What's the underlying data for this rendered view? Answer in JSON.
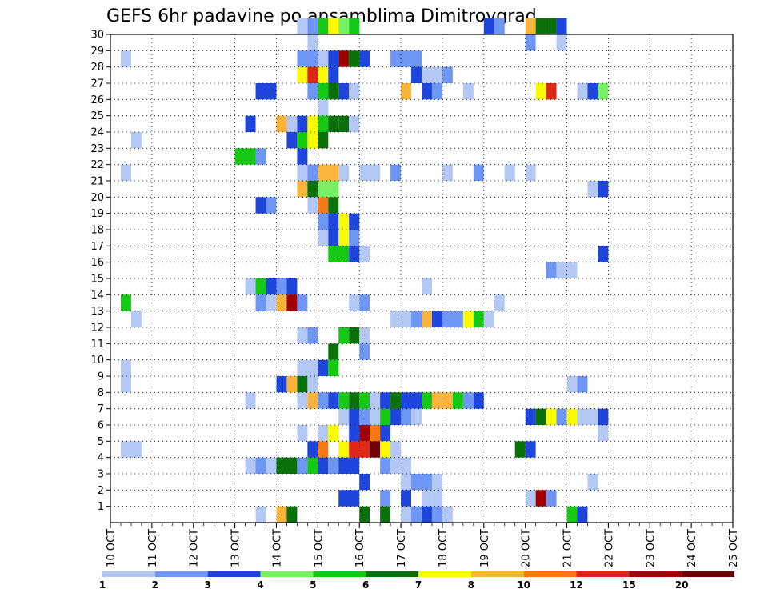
{
  "chart_data": {
    "type": "heatmap",
    "title": "GEFS 6hr padavine po ansamblima Dimitrovgrad",
    "xlabel": "",
    "ylabel": "",
    "x_ticks": [
      "10 OCT",
      "11 OCT",
      "12 OCT",
      "13 OCT",
      "14 OCT",
      "15 OCT",
      "16 OCT",
      "17 OCT",
      "18 OCT",
      "19 OCT",
      "20 OCT",
      "21 OCT",
      "22 OCT",
      "23 OCT",
      "24 OCT",
      "25 OCT"
    ],
    "y_ticks": [
      1,
      2,
      3,
      4,
      5,
      6,
      7,
      8,
      9,
      10,
      11,
      12,
      13,
      14,
      15,
      16,
      17,
      18,
      19,
      20,
      21,
      22,
      23,
      24,
      25,
      26,
      27,
      28,
      29,
      30
    ],
    "x_range_steps": [
      0,
      60
    ],
    "y_range": [
      0,
      30
    ],
    "grid": true,
    "colorbar": {
      "levels": [
        "1",
        "2",
        "3",
        "4",
        "5",
        "6",
        "7",
        "8",
        "10",
        "12",
        "15",
        "20"
      ],
      "colors": [
        "#b4c8f5",
        "#6e96f5",
        "#1e46dc",
        "#78f064",
        "#14c814",
        "#0a700a",
        "#fafa00",
        "#fab43c",
        "#fa7814",
        "#dc2814",
        "#a00000",
        "#6e0000"
      ]
    },
    "cells_note_members": "rows are ensemble member numbers; cells are [member, start_step, end_step, level_index]; step = 6 hours from 10 OCT 00z",
    "cells": [
      [
        30,
        18,
        19,
        0
      ],
      [
        30,
        19,
        20,
        1
      ],
      [
        30,
        20,
        21,
        4
      ],
      [
        30,
        21,
        22,
        6
      ],
      [
        30,
        22,
        23,
        3
      ],
      [
        30,
        23,
        24,
        4
      ],
      [
        30,
        36,
        37,
        2
      ],
      [
        30,
        37,
        38,
        1
      ],
      [
        30,
        40,
        41,
        7
      ],
      [
        30,
        41,
        42,
        5
      ],
      [
        30,
        42,
        43,
        5
      ],
      [
        30,
        43,
        44,
        2
      ],
      [
        29,
        19,
        20,
        0
      ],
      [
        29,
        40,
        41,
        1
      ],
      [
        29,
        43,
        44,
        0
      ],
      [
        28,
        1,
        2,
        0
      ],
      [
        28,
        18,
        20,
        1
      ],
      [
        28,
        20,
        21,
        0
      ],
      [
        28,
        21,
        22,
        2
      ],
      [
        28,
        22,
        23,
        10
      ],
      [
        28,
        23,
        24,
        5
      ],
      [
        28,
        24,
        25,
        2
      ],
      [
        28,
        27,
        29,
        1
      ],
      [
        28,
        29,
        30,
        1
      ],
      [
        27,
        18,
        19,
        6
      ],
      [
        27,
        19,
        20,
        9
      ],
      [
        27,
        20,
        21,
        6
      ],
      [
        27,
        21,
        22,
        2
      ],
      [
        27,
        29,
        30,
        2
      ],
      [
        27,
        30,
        32,
        0
      ],
      [
        27,
        32,
        33,
        1
      ],
      [
        26,
        14,
        16,
        2
      ],
      [
        26,
        19,
        20,
        1
      ],
      [
        26,
        20,
        21,
        4
      ],
      [
        26,
        21,
        22,
        5
      ],
      [
        26,
        22,
        23,
        2
      ],
      [
        26,
        23,
        24,
        0
      ],
      [
        26,
        28,
        29,
        7
      ],
      [
        26,
        30,
        31,
        2
      ],
      [
        26,
        31,
        32,
        1
      ],
      [
        26,
        34,
        35,
        0
      ],
      [
        26,
        41,
        42,
        6
      ],
      [
        26,
        42,
        43,
        9
      ],
      [
        26,
        45,
        46,
        0
      ],
      [
        26,
        46,
        47,
        2
      ],
      [
        26,
        47,
        48,
        3
      ],
      [
        25,
        20,
        21,
        0
      ],
      [
        24,
        13,
        14,
        2
      ],
      [
        24,
        16,
        17,
        7
      ],
      [
        24,
        17,
        18,
        0
      ],
      [
        24,
        18,
        19,
        2
      ],
      [
        24,
        19,
        20,
        6
      ],
      [
        24,
        20,
        21,
        4
      ],
      [
        24,
        21,
        22,
        5
      ],
      [
        24,
        22,
        23,
        5
      ],
      [
        24,
        23,
        24,
        0
      ],
      [
        23,
        2,
        3,
        0
      ],
      [
        23,
        17,
        18,
        2
      ],
      [
        23,
        18,
        19,
        4
      ],
      [
        23,
        19,
        20,
        6
      ],
      [
        23,
        20,
        21,
        5
      ],
      [
        22,
        12,
        14,
        4
      ],
      [
        22,
        14,
        15,
        1
      ],
      [
        22,
        18,
        19,
        2
      ],
      [
        21,
        1,
        2,
        0
      ],
      [
        21,
        18,
        19,
        0
      ],
      [
        21,
        19,
        20,
        1
      ],
      [
        21,
        20,
        22,
        7
      ],
      [
        21,
        22,
        23,
        0
      ],
      [
        21,
        24,
        26,
        0
      ],
      [
        21,
        27,
        28,
        1
      ],
      [
        21,
        32,
        33,
        0
      ],
      [
        21,
        35,
        36,
        1
      ],
      [
        21,
        38,
        39,
        0
      ],
      [
        21,
        40,
        41,
        0
      ],
      [
        20,
        18,
        19,
        7
      ],
      [
        20,
        19,
        20,
        5
      ],
      [
        20,
        20,
        22,
        3
      ],
      [
        20,
        46,
        47,
        0
      ],
      [
        20,
        47,
        48,
        2
      ],
      [
        19,
        14,
        15,
        2
      ],
      [
        19,
        15,
        16,
        1
      ],
      [
        19,
        19,
        20,
        0
      ],
      [
        19,
        20,
        21,
        8
      ],
      [
        19,
        21,
        22,
        5
      ],
      [
        18,
        20,
        21,
        1
      ],
      [
        18,
        21,
        22,
        2
      ],
      [
        18,
        22,
        23,
        6
      ],
      [
        18,
        23,
        24,
        2
      ],
      [
        17,
        20,
        21,
        0
      ],
      [
        17,
        21,
        22,
        2
      ],
      [
        17,
        22,
        23,
        6
      ],
      [
        17,
        23,
        24,
        1
      ],
      [
        16,
        21,
        23,
        4
      ],
      [
        16,
        23,
        24,
        2
      ],
      [
        16,
        24,
        25,
        0
      ],
      [
        16,
        47,
        48,
        2
      ],
      [
        15,
        42,
        43,
        1
      ],
      [
        15,
        43,
        45,
        0
      ],
      [
        14,
        13,
        14,
        0
      ],
      [
        14,
        14,
        15,
        4
      ],
      [
        14,
        15,
        16,
        2
      ],
      [
        14,
        16,
        17,
        1
      ],
      [
        14,
        17,
        18,
        2
      ],
      [
        14,
        30,
        31,
        0
      ],
      [
        13,
        1,
        2,
        4
      ],
      [
        13,
        14,
        15,
        1
      ],
      [
        13,
        15,
        16,
        0
      ],
      [
        13,
        16,
        17,
        7
      ],
      [
        13,
        17,
        18,
        10
      ],
      [
        13,
        18,
        19,
        1
      ],
      [
        13,
        23,
        24,
        0
      ],
      [
        13,
        24,
        25,
        1
      ],
      [
        13,
        37,
        38,
        0
      ],
      [
        12,
        2,
        3,
        0
      ],
      [
        12,
        27,
        29,
        0
      ],
      [
        12,
        29,
        30,
        1
      ],
      [
        12,
        30,
        31,
        7
      ],
      [
        12,
        31,
        32,
        2
      ],
      [
        12,
        32,
        34,
        1
      ],
      [
        12,
        34,
        35,
        6
      ],
      [
        12,
        35,
        36,
        4
      ],
      [
        12,
        36,
        37,
        0
      ],
      [
        11,
        18,
        19,
        0
      ],
      [
        11,
        19,
        20,
        1
      ],
      [
        11,
        22,
        23,
        4
      ],
      [
        11,
        23,
        24,
        5
      ],
      [
        11,
        24,
        25,
        0
      ],
      [
        10,
        21,
        22,
        5
      ],
      [
        10,
        24,
        25,
        1
      ],
      [
        9,
        1,
        2,
        0
      ],
      [
        9,
        18,
        20,
        0
      ],
      [
        9,
        20,
        21,
        2
      ],
      [
        9,
        21,
        22,
        4
      ],
      [
        8,
        1,
        2,
        0
      ],
      [
        8,
        16,
        17,
        2
      ],
      [
        8,
        17,
        18,
        7
      ],
      [
        8,
        18,
        19,
        5
      ],
      [
        8,
        19,
        20,
        0
      ],
      [
        8,
        44,
        45,
        0
      ],
      [
        8,
        45,
        46,
        1
      ],
      [
        7,
        13,
        14,
        0
      ],
      [
        7,
        18,
        19,
        0
      ],
      [
        7,
        19,
        20,
        7
      ],
      [
        7,
        20,
        21,
        1
      ],
      [
        7,
        21,
        22,
        2
      ],
      [
        7,
        22,
        23,
        4
      ],
      [
        7,
        23,
        24,
        5
      ],
      [
        7,
        24,
        25,
        4
      ],
      [
        7,
        25,
        26,
        0
      ],
      [
        7,
        26,
        27,
        2
      ],
      [
        7,
        27,
        28,
        5
      ],
      [
        7,
        28,
        30,
        2
      ],
      [
        7,
        30,
        31,
        4
      ],
      [
        7,
        31,
        33,
        7
      ],
      [
        7,
        33,
        34,
        4
      ],
      [
        7,
        34,
        35,
        1
      ],
      [
        7,
        35,
        36,
        2
      ],
      [
        6,
        22,
        23,
        0
      ],
      [
        6,
        23,
        24,
        2
      ],
      [
        6,
        24,
        25,
        1
      ],
      [
        6,
        25,
        26,
        0
      ],
      [
        6,
        26,
        27,
        4
      ],
      [
        6,
        27,
        28,
        2
      ],
      [
        6,
        28,
        29,
        1
      ],
      [
        6,
        29,
        30,
        0
      ],
      [
        6,
        40,
        41,
        2
      ],
      [
        6,
        41,
        42,
        5
      ],
      [
        6,
        42,
        43,
        6
      ],
      [
        6,
        43,
        44,
        1
      ],
      [
        6,
        44,
        45,
        6
      ],
      [
        6,
        45,
        47,
        0
      ],
      [
        6,
        47,
        48,
        2
      ],
      [
        5,
        18,
        19,
        0
      ],
      [
        5,
        20,
        21,
        0
      ],
      [
        5,
        21,
        22,
        6
      ],
      [
        5,
        23,
        24,
        2
      ],
      [
        5,
        24,
        25,
        10
      ],
      [
        5,
        25,
        26,
        8
      ],
      [
        5,
        26,
        27,
        2
      ],
      [
        5,
        47,
        48,
        0
      ],
      [
        4,
        1,
        3,
        0
      ],
      [
        4,
        19,
        20,
        2
      ],
      [
        4,
        20,
        21,
        8
      ],
      [
        4,
        22,
        23,
        6
      ],
      [
        4,
        23,
        25,
        9
      ],
      [
        4,
        25,
        26,
        11
      ],
      [
        4,
        26,
        27,
        6
      ],
      [
        4,
        27,
        28,
        0
      ],
      [
        4,
        39,
        40,
        5
      ],
      [
        4,
        40,
        41,
        2
      ],
      [
        3,
        13,
        14,
        0
      ],
      [
        3,
        14,
        15,
        1
      ],
      [
        3,
        15,
        16,
        0
      ],
      [
        3,
        16,
        18,
        5
      ],
      [
        3,
        18,
        19,
        1
      ],
      [
        3,
        19,
        20,
        4
      ],
      [
        3,
        20,
        21,
        2
      ],
      [
        3,
        21,
        22,
        1
      ],
      [
        3,
        22,
        24,
        2
      ],
      [
        3,
        26,
        27,
        1
      ],
      [
        3,
        27,
        29,
        0
      ],
      [
        2,
        24,
        25,
        2
      ],
      [
        2,
        28,
        29,
        0
      ],
      [
        2,
        29,
        31,
        1
      ],
      [
        2,
        31,
        32,
        0
      ],
      [
        2,
        46,
        47,
        0
      ],
      [
        1,
        22,
        24,
        2
      ],
      [
        1,
        26,
        27,
        1
      ],
      [
        1,
        28,
        29,
        2
      ],
      [
        1,
        30,
        31,
        0
      ],
      [
        1,
        31,
        32,
        0
      ],
      [
        1,
        40,
        41,
        0
      ],
      [
        1,
        41,
        42,
        10
      ],
      [
        1,
        42,
        43,
        1
      ],
      [
        0,
        14,
        15,
        0
      ],
      [
        0,
        16,
        17,
        7
      ],
      [
        0,
        17,
        18,
        5
      ],
      [
        0,
        24,
        25,
        5
      ],
      [
        0,
        26,
        27,
        5
      ],
      [
        0,
        28,
        29,
        0
      ],
      [
        0,
        29,
        30,
        1
      ],
      [
        0,
        30,
        31,
        2
      ],
      [
        0,
        31,
        32,
        1
      ],
      [
        0,
        32,
        33,
        0
      ],
      [
        0,
        44,
        45,
        4
      ],
      [
        0,
        45,
        46,
        2
      ]
    ]
  }
}
